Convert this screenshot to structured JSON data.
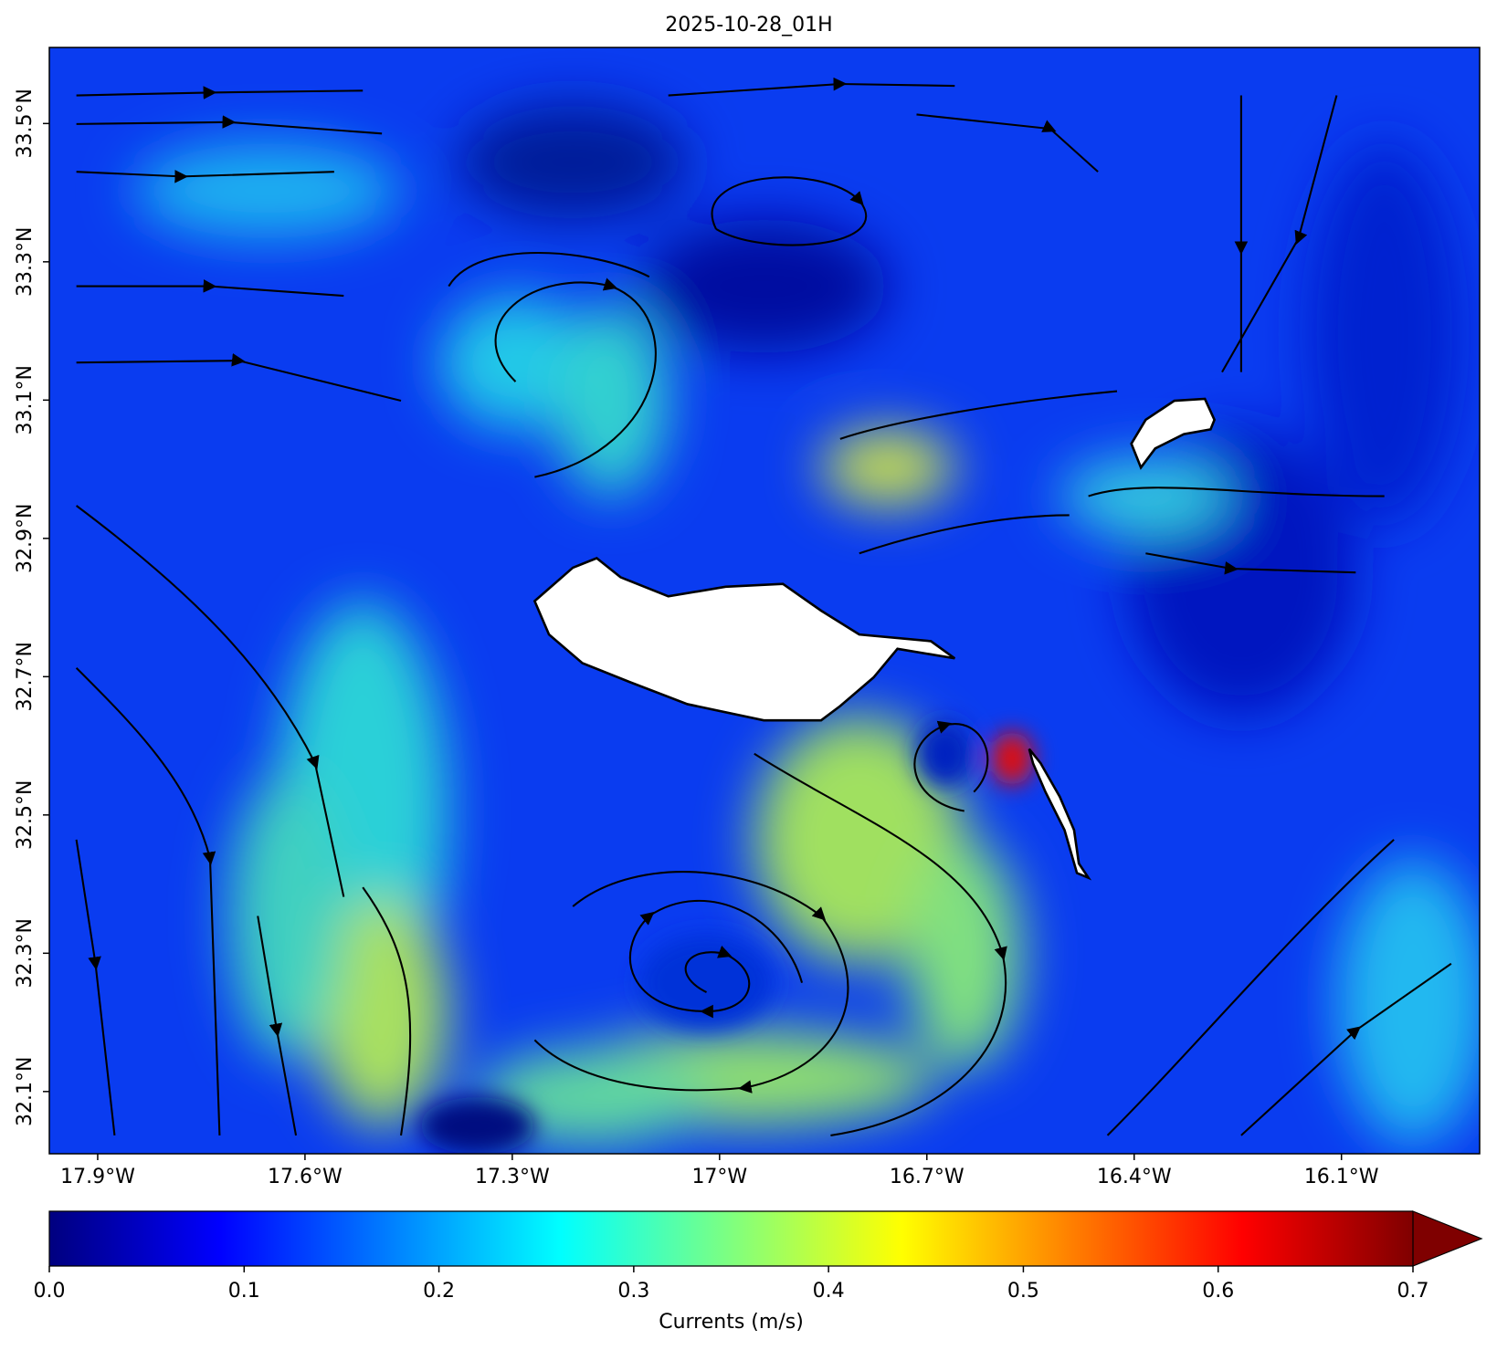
{
  "chart_data": {
    "type": "map",
    "title": "2025-10-28_01H",
    "xlim": [
      -17.97,
      -15.9
    ],
    "ylim": [
      32.01,
      33.61
    ],
    "xticks": [
      {
        "value": -17.9,
        "label": "17.9°W"
      },
      {
        "value": -17.6,
        "label": "17.6°W"
      },
      {
        "value": -17.3,
        "label": "17.3°W"
      },
      {
        "value": -17,
        "label": "17°W"
      },
      {
        "value": -16.7,
        "label": "16.7°W"
      },
      {
        "value": -16.4,
        "label": "16.4°W"
      },
      {
        "value": -16.1,
        "label": "16.1°W"
      }
    ],
    "yticks": [
      {
        "value": 32.1,
        "label": "32.1°N"
      },
      {
        "value": 32.3,
        "label": "32.3°N"
      },
      {
        "value": 32.5,
        "label": "32.5°N"
      },
      {
        "value": 32.7,
        "label": "32.7°N"
      },
      {
        "value": 32.9,
        "label": "32.9°N"
      },
      {
        "value": 33.1,
        "label": "33.1°N"
      },
      {
        "value": 33.3,
        "label": "33.3°N"
      },
      {
        "value": 33.5,
        "label": "33.5°N"
      }
    ],
    "colorbar": {
      "label": "Currents (m/s)",
      "lim": [
        0,
        0.7
      ],
      "ticks": [
        {
          "value": 0,
          "label": "0.0"
        },
        0.1,
        0.2,
        0.3,
        0.4,
        0.5,
        0.6,
        0.7
      ],
      "colormap": "jet",
      "extend": "max"
    }
  }
}
